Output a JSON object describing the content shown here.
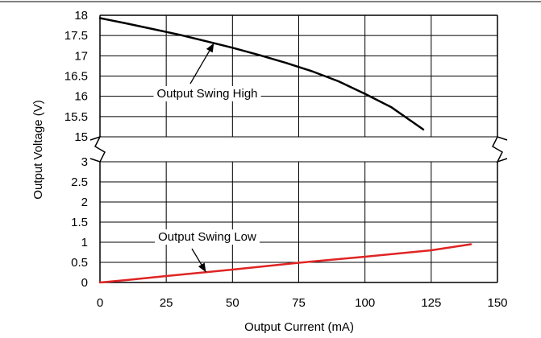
{
  "chart_data": {
    "type": "line",
    "title": "",
    "xlabel": "Output Current (mA)",
    "ylabel": "Output Voltage (V)",
    "xlim": [
      0,
      150
    ],
    "grid": true,
    "broken_y_axis": true,
    "x_ticks": [
      "0",
      "25",
      "50",
      "75",
      "100",
      "125",
      "150"
    ],
    "panels": [
      {
        "ylim": [
          15,
          18
        ],
        "y_ticks": [
          "15",
          "15.5",
          "16",
          "16.5",
          "17",
          "17.5",
          "18"
        ]
      },
      {
        "ylim": [
          0,
          3
        ],
        "y_ticks": [
          "0",
          "0.5",
          "1",
          "1.5",
          "2",
          "2.5",
          "3"
        ]
      }
    ],
    "series": [
      {
        "name": "Output Swing High",
        "panel": 0,
        "color": "#000000",
        "x": [
          0,
          10,
          20,
          30,
          40,
          50,
          60,
          70,
          80,
          90,
          100,
          110,
          122
        ],
        "y": [
          17.93,
          17.8,
          17.66,
          17.52,
          17.36,
          17.2,
          17.02,
          16.83,
          16.62,
          16.37,
          16.06,
          15.73,
          15.18
        ]
      },
      {
        "name": "Output Swing Low",
        "panel": 1,
        "color": "#e02424",
        "x": [
          0,
          10,
          25,
          50,
          75,
          100,
          125,
          140
        ],
        "y": [
          0,
          0.06,
          0.16,
          0.32,
          0.49,
          0.64,
          0.8,
          0.95
        ]
      }
    ]
  }
}
